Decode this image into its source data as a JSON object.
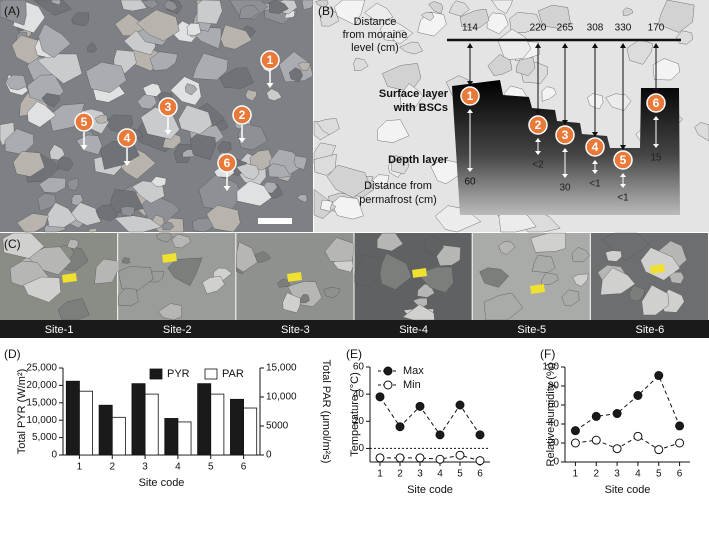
{
  "panel_labels": [
    "(A)",
    "(B)",
    "(C)",
    "(D)",
    "(E)",
    "(F)"
  ],
  "photo_a": {
    "markers": [
      "1",
      "2",
      "3",
      "4",
      "5",
      "6"
    ]
  },
  "diagram_b": {
    "top_label": [
      "Distance",
      "from moraine",
      "level (cm)"
    ],
    "top_distances": [
      114,
      220,
      265,
      308,
      330,
      170
    ],
    "surface_label": [
      "Surface layer",
      "with BSCs"
    ],
    "depth_label": "Depth layer",
    "bottom_label": [
      "Distance from",
      "permafrost (cm)"
    ],
    "bottom_distances": [
      "60",
      "<2",
      "30",
      "<1",
      "<1",
      "15"
    ],
    "sites": [
      "1",
      "2",
      "3",
      "4",
      "5",
      "6"
    ]
  },
  "photos_c": {
    "labels": [
      "Site-1",
      "Site-2",
      "Site-3",
      "Site-4",
      "Site-5",
      "Site-6"
    ]
  },
  "chart_data": [
    {
      "type": "bar",
      "categories": [
        "1",
        "2",
        "3",
        "4",
        "5",
        "6"
      ],
      "x_label": "Site code",
      "y_label": "Total PYR (W/m²)",
      "y2_label": "Total PAR (μmol/m²s)",
      "series": [
        {
          "name": "PYR",
          "color": "#1a1a1a",
          "values": [
            21200,
            14300,
            20500,
            10500,
            20500,
            16000
          ]
        },
        {
          "name": "PAR",
          "color": "#ffffff",
          "axis": "y2",
          "values": [
            11000,
            6500,
            10500,
            5700,
            10500,
            8100
          ]
        }
      ],
      "ylim": [
        0,
        25000
      ],
      "yticks": [
        0,
        {
          "value": 5000,
          "label": "5,000"
        },
        {
          "value": 10000,
          "label": "10,000"
        },
        {
          "value": 15000,
          "label": "15,000"
        },
        {
          "value": 20000,
          "label": "20,000"
        },
        {
          "value": 25000,
          "label": "25,000"
        }
      ],
      "y2lim": [
        0,
        15000
      ],
      "y2ticks": [
        0,
        {
          "value": 5000,
          "label": "5000"
        },
        {
          "value": 10000,
          "label": "10,000"
        },
        {
          "value": 15000,
          "label": "15,000"
        }
      ],
      "legend": "top-right"
    },
    {
      "type": "line",
      "categories": [
        "1",
        "2",
        "3",
        "4",
        "5",
        "6"
      ],
      "x_label": "Site code",
      "y_label": "Temperature (°C)",
      "series": [
        {
          "name": "Max",
          "color": "#1a1a1a",
          "values": [
            38,
            16,
            31,
            10,
            32,
            10
          ]
        },
        {
          "name": "Min",
          "color": "#ffffff",
          "values": [
            -7,
            -7,
            -7,
            -8,
            -5,
            -9
          ]
        }
      ],
      "ylim": [
        -10,
        60
      ],
      "yticks": [
        0,
        20,
        40,
        60
      ],
      "zero_line": true,
      "legend": "top-left"
    },
    {
      "type": "line",
      "categories": [
        "1",
        "2",
        "3",
        "4",
        "5",
        "6"
      ],
      "x_label": "Site code",
      "y_label": "Relative humidity (%)",
      "series": [
        {
          "name": "Max",
          "color": "#1a1a1a",
          "values": [
            33,
            48,
            51,
            70,
            91,
            38
          ]
        },
        {
          "name": "Min",
          "color": "#ffffff",
          "values": [
            20,
            23,
            14,
            27,
            13,
            20
          ]
        }
      ],
      "ylim": [
        0,
        100
      ],
      "yticks": [
        0,
        20,
        40,
        60,
        80,
        100
      ]
    }
  ]
}
